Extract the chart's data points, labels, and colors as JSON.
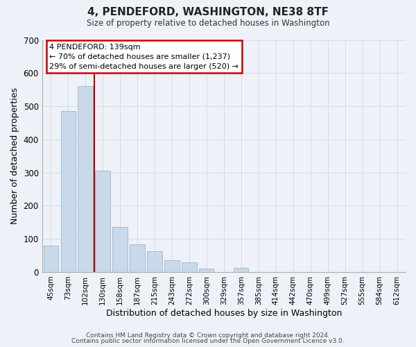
{
  "title": "4, PENDEFORD, WASHINGTON, NE38 8TF",
  "subtitle": "Size of property relative to detached houses in Washington",
  "xlabel": "Distribution of detached houses by size in Washington",
  "ylabel": "Number of detached properties",
  "bar_color": "#c9d9ea",
  "bar_edge_color": "#9ab5cc",
  "categories": [
    "45sqm",
    "73sqm",
    "102sqm",
    "130sqm",
    "158sqm",
    "187sqm",
    "215sqm",
    "243sqm",
    "272sqm",
    "300sqm",
    "329sqm",
    "357sqm",
    "385sqm",
    "414sqm",
    "442sqm",
    "470sqm",
    "499sqm",
    "527sqm",
    "555sqm",
    "584sqm",
    "612sqm"
  ],
  "values": [
    80,
    485,
    560,
    305,
    135,
    83,
    63,
    35,
    30,
    10,
    0,
    12,
    0,
    0,
    0,
    0,
    0,
    0,
    0,
    0,
    0
  ],
  "ylim": [
    0,
    700
  ],
  "yticks": [
    0,
    100,
    200,
    300,
    400,
    500,
    600,
    700
  ],
  "vline_color": "#bb0000",
  "annotation_line1": "4 PENDEFORD: 139sqm",
  "annotation_line2": "← 70% of detached houses are smaller (1,237)",
  "annotation_line3": "29% of semi-detached houses are larger (520) →",
  "annotation_box_color": "#ffffff",
  "annotation_box_edge": "#cc0000",
  "footer_line1": "Contains HM Land Registry data © Crown copyright and database right 2024.",
  "footer_line2": "Contains public sector information licensed under the Open Government Licence v3.0.",
  "grid_color": "#d0dcea",
  "background_color": "#eef2f8"
}
